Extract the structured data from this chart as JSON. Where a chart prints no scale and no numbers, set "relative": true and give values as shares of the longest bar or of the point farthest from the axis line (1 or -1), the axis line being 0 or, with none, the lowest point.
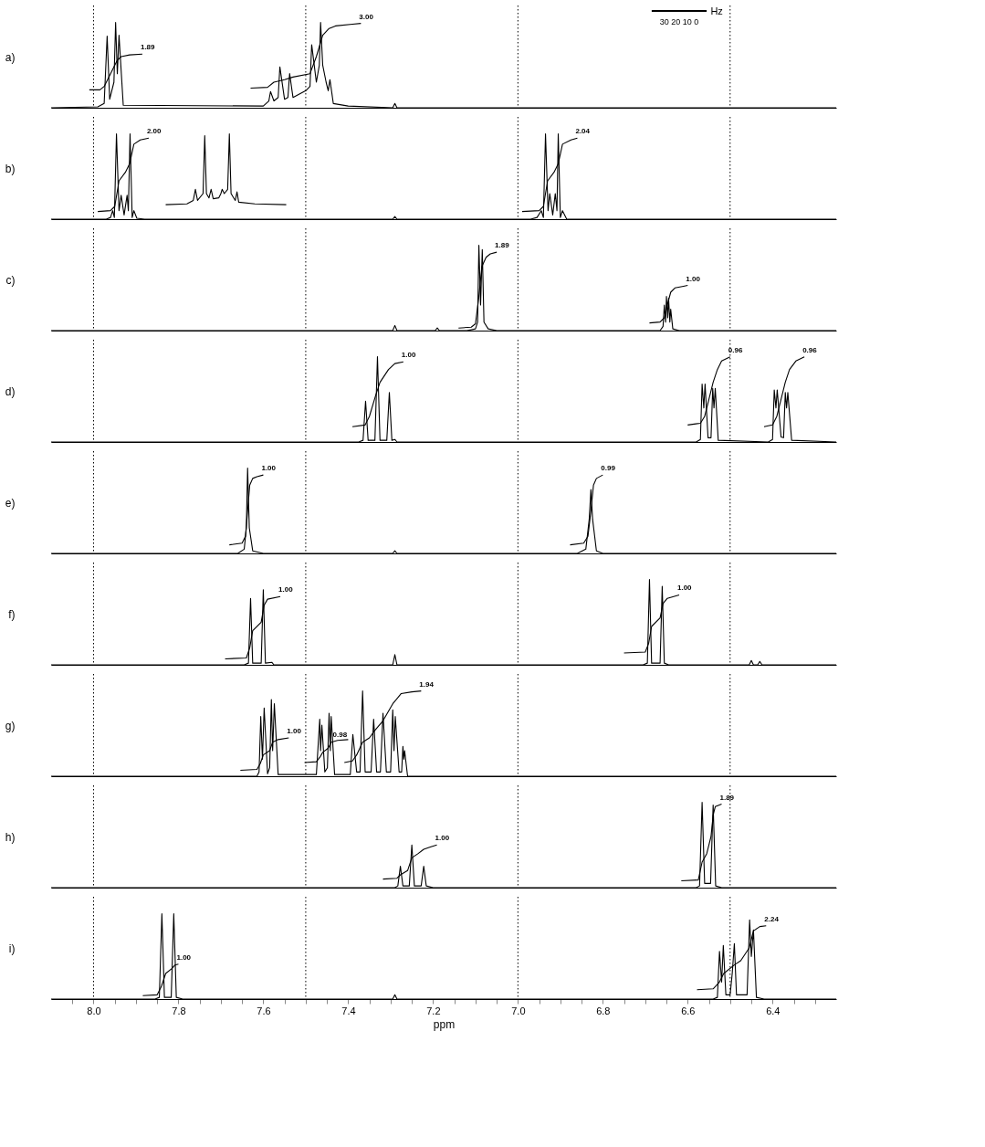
{
  "chart_data": [
    {
      "type": "line",
      "relative": true,
      "ylabel": "a)",
      "xlim": [
        8.1,
        6.25
      ],
      "tick_labels": false,
      "ref_lines": [
        {
          "axis": "x",
          "value": 8.0,
          "color": "#000000",
          "line_style": "dotted"
        },
        {
          "axis": "x",
          "value": 7.5,
          "color": "#000000",
          "line_style": "dotted"
        },
        {
          "axis": "x",
          "value": 7.0,
          "color": "#000000",
          "line_style": "dotted"
        },
        {
          "axis": "x",
          "value": 6.5,
          "color": "#000000",
          "line_style": "dotted"
        }
      ],
      "series": [
        {
          "color": "#000000",
          "x": [
            8.1,
            7.99,
            7.975,
            7.968,
            7.962,
            7.952,
            7.948,
            7.944,
            7.94,
            7.93,
            7.6,
            7.587,
            7.583,
            7.575,
            7.565,
            7.561,
            7.55,
            7.542,
            7.538,
            7.53,
            7.5,
            7.49,
            7.486,
            7.475,
            7.468,
            7.465,
            7.46,
            7.452,
            7.447,
            7.443,
            7.435,
            7.4,
            7.295,
            7.29,
            7.285,
            6.25
          ],
          "values": [
            0,
            0.01,
            0.05,
            0.84,
            0.1,
            0.3,
            1.0,
            0.4,
            0.85,
            0.03,
            0.02,
            0.08,
            0.19,
            0.08,
            0.12,
            0.48,
            0.1,
            0.12,
            0.4,
            0.12,
            0.2,
            0.25,
            0.74,
            0.3,
            0.5,
            1.0,
            0.5,
            0.3,
            0.2,
            0.33,
            0.05,
            0.02,
            0,
            0.05,
            0,
            0
          ]
        },
        {
          "color": "#000000",
          "x": [
            8.01,
            7.985,
            7.975,
            7.96,
            7.945,
            7.935,
            7.915,
            7.885
          ],
          "values": [
            0.21,
            0.21,
            0.25,
            0.4,
            0.55,
            0.6,
            0.62,
            0.63
          ]
        },
        {
          "color": "#000000",
          "x": [
            7.63,
            7.59,
            7.575,
            7.55,
            7.53,
            7.49,
            7.475,
            7.46,
            7.445,
            7.43,
            7.39,
            7.37
          ],
          "values": [
            0.23,
            0.24,
            0.3,
            0.33,
            0.36,
            0.4,
            0.6,
            0.85,
            0.93,
            0.96,
            0.98,
            0.99
          ]
        }
      ],
      "annotations": [
        {
          "text": "1.89",
          "x": 7.885,
          "y": 0.63
        },
        {
          "text": "3.00",
          "x": 7.37,
          "y": 0.99
        },
        "Hz",
        "30 20 10 0"
      ]
    },
    {
      "type": "line",
      "relative": true,
      "ylabel": "b)",
      "xlim": [
        8.1,
        6.25
      ],
      "tick_labels": false,
      "ref_lines": [
        {
          "axis": "x",
          "value": 8.0,
          "color": "#000000",
          "line_style": "dotted"
        },
        {
          "axis": "x",
          "value": 7.5,
          "color": "#000000",
          "line_style": "dotted"
        },
        {
          "axis": "x",
          "value": 7.0,
          "color": "#000000",
          "line_style": "dotted"
        },
        {
          "axis": "x",
          "value": 6.5,
          "color": "#000000",
          "line_style": "dotted"
        }
      ],
      "series": [
        {
          "color": "#000000",
          "x": [
            8.1,
            7.97,
            7.96,
            7.955,
            7.951,
            7.946,
            7.94,
            7.935,
            7.928,
            7.921,
            7.918,
            7.914,
            7.909,
            7.905,
            7.898,
            7.88,
            7.295,
            7.29,
            7.285,
            6.97,
            6.955,
            6.945,
            6.94,
            6.935,
            6.929,
            6.925,
            6.918,
            6.912,
            6.908,
            6.905,
            6.9,
            6.895,
            6.885,
            6.25
          ],
          "values": [
            0,
            0,
            0.02,
            0.1,
            0.02,
            1.0,
            0.1,
            0.28,
            0.05,
            0.28,
            0.1,
            1.0,
            0.02,
            0.1,
            0.01,
            0,
            0,
            0.03,
            0,
            0,
            0.02,
            0.1,
            0.02,
            1.0,
            0.1,
            0.3,
            0.05,
            0.3,
            0.1,
            1.0,
            0.02,
            0.1,
            0,
            0
          ]
        },
        {
          "color": "#000000",
          "x": [
            7.83,
            7.78,
            7.765,
            7.76,
            7.755,
            7.742,
            7.738,
            7.734,
            7.728,
            7.723,
            7.718,
            7.705,
            7.7,
            7.697,
            7.692,
            7.684,
            7.68,
            7.676,
            7.666,
            7.662,
            7.658,
            7.62,
            7.546
          ],
          "values": [
            0.17,
            0.18,
            0.22,
            0.35,
            0.22,
            0.3,
            0.98,
            0.3,
            0.25,
            0.35,
            0.24,
            0.25,
            0.3,
            0.35,
            0.3,
            0.35,
            1.0,
            0.3,
            0.22,
            0.32,
            0.2,
            0.18,
            0.17
          ]
        },
        {
          "color": "#000000",
          "x": [
            7.99,
            7.96,
            7.95,
            7.94,
            7.925,
            7.915,
            7.905,
            7.89,
            7.87
          ],
          "values": [
            0.09,
            0.1,
            0.15,
            0.45,
            0.55,
            0.65,
            0.88,
            0.93,
            0.95
          ]
        },
        {
          "color": "#000000",
          "x": [
            6.99,
            6.95,
            6.94,
            6.93,
            6.915,
            6.905,
            6.895,
            6.875,
            6.86
          ],
          "values": [
            0.09,
            0.1,
            0.15,
            0.45,
            0.55,
            0.65,
            0.88,
            0.93,
            0.95
          ]
        }
      ],
      "annotations": [
        {
          "text": "2.00",
          "x": 7.87,
          "y": 0.95
        },
        {
          "text": "2.04",
          "x": 6.86,
          "y": 0.95
        }
      ]
    },
    {
      "type": "line",
      "relative": true,
      "ylabel": "c)",
      "xlim": [
        8.1,
        6.25
      ],
      "tick_labels": false,
      "ref_lines": [
        {
          "axis": "x",
          "value": 8.0,
          "color": "#000000",
          "line_style": "dotted"
        },
        {
          "axis": "x",
          "value": 7.5,
          "color": "#000000",
          "line_style": "dotted"
        },
        {
          "axis": "x",
          "value": 7.0,
          "color": "#000000",
          "line_style": "dotted"
        },
        {
          "axis": "x",
          "value": 6.5,
          "color": "#000000",
          "line_style": "dotted"
        }
      ],
      "series": [
        {
          "color": "#000000",
          "x": [
            8.1,
            7.295,
            7.29,
            7.285,
            7.195,
            7.19,
            7.185,
            7.12,
            7.1,
            7.095,
            7.092,
            7.088,
            7.084,
            7.08,
            7.07,
            7.05,
            6.665,
            6.658,
            6.655,
            6.652,
            6.65,
            6.647,
            6.645,
            6.642,
            6.64,
            6.635,
            6.62,
            6.25
          ],
          "values": [
            0,
            0,
            0.06,
            0,
            0,
            0.03,
            0,
            0,
            0.02,
            0.1,
            1.0,
            0.3,
            0.95,
            0.1,
            0.02,
            0,
            0,
            0.05,
            0.3,
            0.1,
            0.4,
            0.15,
            0.38,
            0.1,
            0.25,
            0.02,
            0,
            0
          ]
        },
        {
          "color": "#000000",
          "x": [
            7.14,
            7.11,
            7.1,
            7.092,
            7.085,
            7.075,
            7.065,
            7.05
          ],
          "values": [
            0.03,
            0.04,
            0.08,
            0.4,
            0.75,
            0.86,
            0.9,
            0.92
          ]
        },
        {
          "color": "#000000",
          "x": [
            6.69,
            6.665,
            6.655,
            6.648,
            6.64,
            6.63,
            6.61,
            6.6
          ],
          "values": [
            0.09,
            0.1,
            0.15,
            0.3,
            0.45,
            0.5,
            0.52,
            0.53
          ]
        }
      ],
      "annotations": [
        {
          "text": "1.89",
          "x": 7.05,
          "y": 0.92
        },
        {
          "text": "1.00",
          "x": 6.6,
          "y": 0.53
        }
      ]
    },
    {
      "type": "line",
      "relative": true,
      "ylabel": "d)",
      "xlim": [
        8.1,
        6.25
      ],
      "tick_labels": false,
      "ref_lines": [
        {
          "axis": "x",
          "value": 8.0,
          "color": "#000000",
          "line_style": "dotted"
        },
        {
          "axis": "x",
          "value": 7.5,
          "color": "#000000",
          "line_style": "dotted"
        },
        {
          "axis": "x",
          "value": 7.0,
          "color": "#000000",
          "line_style": "dotted"
        },
        {
          "axis": "x",
          "value": 6.5,
          "color": "#000000",
          "line_style": "dotted"
        }
      ],
      "series": [
        {
          "color": "#000000",
          "x": [
            8.1,
            7.375,
            7.365,
            7.359,
            7.353,
            7.337,
            7.331,
            7.325,
            7.309,
            7.303,
            7.297,
            7.29,
            7.285,
            6.58,
            6.57,
            6.566,
            6.562,
            6.559,
            6.552,
            6.545,
            6.541,
            6.538,
            6.535,
            6.528,
            6.41,
            6.4,
            6.396,
            6.392,
            6.389,
            6.38,
            6.374,
            6.37,
            6.367,
            6.364,
            6.355,
            6.25
          ],
          "values": [
            0,
            0,
            0.02,
            0.48,
            0.02,
            0.02,
            1.0,
            0.02,
            0.02,
            0.58,
            0.02,
            0.03,
            0,
            0,
            0.03,
            0.68,
            0.4,
            0.68,
            0.05,
            0.05,
            0.63,
            0.4,
            0.63,
            0.02,
            0,
            0.03,
            0.61,
            0.4,
            0.61,
            0.06,
            0.05,
            0.58,
            0.4,
            0.58,
            0.02,
            0
          ]
        },
        {
          "color": "#000000",
          "x": [
            7.39,
            7.36,
            7.35,
            7.335,
            7.325,
            7.305,
            7.29,
            7.27
          ],
          "values": [
            0.18,
            0.2,
            0.3,
            0.55,
            0.7,
            0.85,
            0.92,
            0.94
          ]
        },
        {
          "color": "#000000",
          "x": [
            6.6,
            6.57,
            6.56,
            6.55,
            6.54,
            6.53,
            6.52,
            6.5
          ],
          "values": [
            0.2,
            0.22,
            0.3,
            0.5,
            0.7,
            0.85,
            0.95,
            1.0
          ]
        },
        {
          "color": "#000000",
          "x": [
            6.42,
            6.4,
            6.39,
            6.38,
            6.37,
            6.36,
            6.345,
            6.325
          ],
          "values": [
            0.18,
            0.2,
            0.3,
            0.5,
            0.7,
            0.85,
            0.95,
            1.0
          ]
        }
      ],
      "annotations": [
        {
          "text": "1.00",
          "x": 7.27,
          "y": 0.94
        },
        {
          "text": "0.96",
          "x": 6.5,
          "y": 1.0
        },
        {
          "text": "0.96",
          "x": 6.325,
          "y": 1.0
        }
      ]
    },
    {
      "type": "line",
      "relative": true,
      "ylabel": "e)",
      "xlim": [
        8.1,
        6.25
      ],
      "tick_labels": false,
      "ref_lines": [
        {
          "axis": "x",
          "value": 8.0,
          "color": "#000000",
          "line_style": "dotted"
        },
        {
          "axis": "x",
          "value": 7.5,
          "color": "#000000",
          "line_style": "dotted"
        },
        {
          "axis": "x",
          "value": 7.0,
          "color": "#000000",
          "line_style": "dotted"
        },
        {
          "axis": "x",
          "value": 6.5,
          "color": "#000000",
          "line_style": "dotted"
        }
      ],
      "series": [
        {
          "color": "#000000",
          "x": [
            8.1,
            7.66,
            7.645,
            7.64,
            7.637,
            7.633,
            7.625,
            7.6,
            7.295,
            7.29,
            7.285,
            6.86,
            6.84,
            6.832,
            6.828,
            6.824,
            6.815,
            6.8,
            6.25
          ],
          "values": [
            0,
            0,
            0.05,
            0.3,
            1.0,
            0.3,
            0.03,
            0,
            0,
            0.03,
            0,
            0,
            0.05,
            0.4,
            0.75,
            0.4,
            0.03,
            0,
            0
          ]
        },
        {
          "color": "#000000",
          "x": [
            7.68,
            7.65,
            7.642,
            7.637,
            7.632,
            7.625,
            7.615,
            7.6
          ],
          "values": [
            0.1,
            0.12,
            0.2,
            0.5,
            0.8,
            0.88,
            0.9,
            0.92
          ]
        },
        {
          "color": "#000000",
          "x": [
            6.877,
            6.845,
            6.835,
            6.828,
            6.822,
            6.815,
            6.8
          ],
          "values": [
            0.1,
            0.12,
            0.2,
            0.5,
            0.8,
            0.88,
            0.92
          ]
        }
      ],
      "annotations": [
        {
          "text": "1.00",
          "x": 7.6,
          "y": 0.92
        },
        {
          "text": "0.99",
          "x": 6.8,
          "y": 0.92
        }
      ]
    },
    {
      "type": "line",
      "relative": true,
      "ylabel": "f)",
      "xlim": [
        8.1,
        6.25
      ],
      "tick_labels": false,
      "ref_lines": [
        {
          "axis": "x",
          "value": 8.0,
          "color": "#000000",
          "line_style": "dotted"
        },
        {
          "axis": "x",
          "value": 7.5,
          "color": "#000000",
          "line_style": "dotted"
        },
        {
          "axis": "x",
          "value": 7.0,
          "color": "#000000",
          "line_style": "dotted"
        },
        {
          "axis": "x",
          "value": 6.5,
          "color": "#000000",
          "line_style": "dotted"
        }
      ],
      "series": [
        {
          "color": "#000000",
          "x": [
            8.1,
            7.645,
            7.635,
            7.63,
            7.625,
            7.605,
            7.6,
            7.595,
            7.58,
            7.575,
            7.295,
            7.29,
            7.285,
            6.705,
            6.695,
            6.69,
            6.685,
            6.665,
            6.66,
            6.655,
            6.645,
            6.455,
            6.45,
            6.445,
            6.435,
            6.43,
            6.425,
            6.25
          ],
          "values": [
            0,
            0,
            0.02,
            0.78,
            0.02,
            0.02,
            0.88,
            0.02,
            0.03,
            0,
            0,
            0.12,
            0,
            0,
            0.02,
            1.0,
            0.02,
            0.02,
            0.92,
            0.02,
            0,
            0,
            0.05,
            0,
            0,
            0.04,
            0,
            0
          ]
        },
        {
          "color": "#000000",
          "x": [
            7.69,
            7.64,
            7.632,
            7.625,
            7.605,
            7.598,
            7.59,
            7.56
          ],
          "values": [
            0.07,
            0.08,
            0.2,
            0.4,
            0.5,
            0.7,
            0.77,
            0.8
          ]
        },
        {
          "color": "#000000",
          "x": [
            6.75,
            6.7,
            6.692,
            6.685,
            6.665,
            6.658,
            6.648,
            6.62
          ],
          "values": [
            0.14,
            0.15,
            0.25,
            0.45,
            0.55,
            0.72,
            0.78,
            0.82
          ]
        }
      ],
      "annotations": [
        {
          "text": "1.00",
          "x": 7.56,
          "y": 0.8
        },
        {
          "text": "1.00",
          "x": 6.62,
          "y": 0.82
        }
      ]
    },
    {
      "type": "line",
      "relative": true,
      "ylabel": "g)",
      "xlim": [
        8.1,
        6.25
      ],
      "tick_labels": false,
      "ref_lines": [
        {
          "axis": "x",
          "value": 8.0,
          "color": "#000000",
          "line_style": "dotted"
        },
        {
          "axis": "x",
          "value": 7.5,
          "color": "#000000",
          "line_style": "dotted"
        },
        {
          "axis": "x",
          "value": 7.0,
          "color": "#000000",
          "line_style": "dotted"
        },
        {
          "axis": "x",
          "value": 6.5,
          "color": "#000000",
          "line_style": "dotted"
        }
      ],
      "series": [
        {
          "color": "#000000",
          "x": [
            8.1,
            7.615,
            7.61,
            7.606,
            7.602,
            7.598,
            7.59,
            7.585,
            7.581,
            7.578,
            7.574,
            7.565,
            7.475,
            7.467,
            7.465,
            7.462,
            7.455,
            7.449,
            7.445,
            7.442,
            7.44,
            7.432,
            7.395,
            7.389,
            7.38,
            7.372,
            7.366,
            7.36,
            7.346,
            7.34,
            7.333,
            7.324,
            7.318,
            7.31,
            7.3,
            7.295,
            7.292,
            7.289,
            7.28,
            7.274,
            7.271,
            7.269,
            7.267,
            7.26,
            6.25
          ],
          "values": [
            0,
            0,
            0.05,
            0.7,
            0.2,
            0.8,
            0.03,
            0.1,
            0.9,
            0.3,
            0.85,
            0.02,
            0.02,
            0.67,
            0.3,
            0.6,
            0.05,
            0.1,
            0.74,
            0.3,
            0.7,
            0.02,
            0.02,
            0.49,
            0.05,
            0.05,
            1.0,
            0.05,
            0.05,
            0.67,
            0.05,
            0.05,
            0.74,
            0.05,
            0.05,
            0.78,
            0.3,
            0.7,
            0.05,
            0.05,
            0.35,
            0.2,
            0.3,
            0,
            0
          ]
        },
        {
          "color": "#000000",
          "x": [
            7.654,
            7.615,
            7.607,
            7.6,
            7.585,
            7.578,
            7.565,
            7.54
          ],
          "values": [
            0.07,
            0.08,
            0.15,
            0.25,
            0.3,
            0.4,
            0.43,
            0.45
          ]
        },
        {
          "color": "#000000",
          "x": [
            7.503,
            7.475,
            7.467,
            7.46,
            7.447,
            7.44,
            7.425,
            7.4
          ],
          "values": [
            0.16,
            0.17,
            0.22,
            0.28,
            0.33,
            0.4,
            0.42,
            0.43
          ]
        },
        {
          "color": "#000000",
          "x": [
            7.409,
            7.39,
            7.38,
            7.366,
            7.35,
            7.34,
            7.318,
            7.295,
            7.275,
            7.25,
            7.228
          ],
          "values": [
            0.16,
            0.18,
            0.25,
            0.4,
            0.45,
            0.52,
            0.65,
            0.85,
            0.97,
            0.99,
            1.0
          ]
        }
      ],
      "annotations": [
        {
          "text": "1.00",
          "x": 7.54,
          "y": 0.45
        },
        {
          "text": "0.98",
          "x": 7.432,
          "y": 0.41
        },
        {
          "text": "1.94",
          "x": 7.228,
          "y": 1.0
        }
      ]
    },
    {
      "type": "line",
      "relative": true,
      "ylabel": "h)",
      "xlim": [
        8.1,
        6.25
      ],
      "tick_labels": false,
      "ref_lines": [
        {
          "axis": "x",
          "value": 8.0,
          "color": "#000000",
          "line_style": "dotted"
        },
        {
          "axis": "x",
          "value": 7.5,
          "color": "#000000",
          "line_style": "dotted"
        },
        {
          "axis": "x",
          "value": 7.0,
          "color": "#000000",
          "line_style": "dotted"
        },
        {
          "axis": "x",
          "value": 6.5,
          "color": "#000000",
          "line_style": "dotted"
        }
      ],
      "series": [
        {
          "color": "#000000",
          "x": [
            8.1,
            7.29,
            7.283,
            7.277,
            7.271,
            7.256,
            7.25,
            7.244,
            7.228,
            7.222,
            7.216,
            7.2,
            6.58,
            6.572,
            6.566,
            6.56,
            6.546,
            6.54,
            6.534,
            6.52,
            6.25
          ],
          "values": [
            0,
            0,
            0.02,
            0.25,
            0.02,
            0.02,
            0.5,
            0.02,
            0.02,
            0.25,
            0.02,
            0,
            0,
            0.02,
            1.0,
            0.05,
            0.05,
            0.97,
            0.02,
            0,
            0
          ]
        },
        {
          "color": "#000000",
          "x": [
            7.318,
            7.285,
            7.277,
            7.26,
            7.25,
            7.235,
            7.222,
            7.205,
            7.191
          ],
          "values": [
            0.1,
            0.11,
            0.15,
            0.2,
            0.35,
            0.4,
            0.45,
            0.48,
            0.5
          ]
        },
        {
          "color": "#000000",
          "x": [
            6.615,
            6.575,
            6.566,
            6.555,
            6.545,
            6.54,
            6.535,
            6.52
          ],
          "values": [
            0.08,
            0.09,
            0.3,
            0.4,
            0.6,
            0.85,
            0.95,
            0.98
          ]
        }
      ],
      "annotations": [
        {
          "text": "1.00",
          "x": 7.191,
          "y": 0.5
        },
        {
          "text": "1.89",
          "x": 6.52,
          "y": 0.98
        }
      ]
    },
    {
      "type": "line",
      "relative": true,
      "ylabel": "i)",
      "xlabel": "ppm",
      "xlim": [
        8.1,
        6.25
      ],
      "tick_labels": "x",
      "xticks": [
        {
          "value": 8.05,
          "label": null
        },
        {
          "value": 8.0,
          "label": "8.0"
        },
        {
          "value": 7.95,
          "label": null
        },
        {
          "value": 7.9,
          "label": null
        },
        {
          "value": 7.85,
          "label": null
        },
        {
          "value": 7.8,
          "label": "7.8"
        },
        {
          "value": 7.75,
          "label": null
        },
        {
          "value": 7.7,
          "label": null
        },
        {
          "value": 7.65,
          "label": null
        },
        {
          "value": 7.6,
          "label": "7.6"
        },
        {
          "value": 7.55,
          "label": null
        },
        {
          "value": 7.5,
          "label": null
        },
        {
          "value": 7.45,
          "label": null
        },
        {
          "value": 7.4,
          "label": "7.4"
        },
        {
          "value": 7.35,
          "label": null
        },
        {
          "value": 7.3,
          "label": null
        },
        {
          "value": 7.25,
          "label": null
        },
        {
          "value": 7.2,
          "label": "7.2"
        },
        {
          "value": 7.15,
          "label": null
        },
        {
          "value": 7.1,
          "label": null
        },
        {
          "value": 7.05,
          "label": null
        },
        {
          "value": 7.0,
          "label": "7.0"
        },
        {
          "value": 6.95,
          "label": null
        },
        {
          "value": 6.9,
          "label": null
        },
        {
          "value": 6.85,
          "label": null
        },
        {
          "value": 6.8,
          "label": "6.8"
        },
        {
          "value": 6.75,
          "label": null
        },
        {
          "value": 6.7,
          "label": null
        },
        {
          "value": 6.65,
          "label": null
        },
        {
          "value": 6.6,
          "label": "6.6"
        },
        {
          "value": 6.55,
          "label": null
        },
        {
          "value": 6.5,
          "label": null
        },
        {
          "value": 6.45,
          "label": null
        },
        {
          "value": 6.4,
          "label": "6.4"
        },
        {
          "value": 6.35,
          "label": null
        },
        {
          "value": 6.3,
          "label": null
        }
      ],
      "ref_lines": [
        {
          "axis": "x",
          "value": 8.0,
          "color": "#000000",
          "line_style": "dotted"
        },
        {
          "axis": "x",
          "value": 7.5,
          "color": "#000000",
          "line_style": "dotted"
        },
        {
          "axis": "x",
          "value": 7.0,
          "color": "#000000",
          "line_style": "dotted"
        },
        {
          "axis": "x",
          "value": 6.5,
          "color": "#000000",
          "line_style": "dotted"
        }
      ],
      "series": [
        {
          "color": "#000000",
          "x": [
            8.1,
            7.855,
            7.845,
            7.839,
            7.833,
            7.817,
            7.811,
            7.805,
            7.79,
            7.295,
            7.29,
            7.285,
            6.54,
            6.53,
            6.525,
            6.52,
            6.516,
            6.51,
            6.5,
            6.495,
            6.49,
            6.485,
            6.46,
            6.454,
            6.45,
            6.445,
            6.438,
            6.42,
            6.25
          ],
          "values": [
            0,
            0,
            0.02,
            1.0,
            0.02,
            0.02,
            1.0,
            0.02,
            0,
            0,
            0.05,
            0,
            0,
            0.02,
            0.56,
            0.2,
            0.63,
            0.05,
            0.05,
            0.3,
            0.65,
            0.05,
            0.05,
            0.93,
            0.5,
            0.81,
            0.02,
            0,
            0
          ]
        },
        {
          "color": "#000000",
          "x": [
            7.884,
            7.85,
            7.84,
            7.83,
            7.815,
            7.808,
            7.8
          ],
          "values": [
            0.04,
            0.05,
            0.15,
            0.3,
            0.36,
            0.4,
            0.41
          ]
        },
        {
          "color": "#000000",
          "x": [
            6.578,
            6.54,
            6.525,
            6.515,
            6.49,
            6.475,
            6.455,
            6.445,
            6.43,
            6.415
          ],
          "values": [
            0.11,
            0.12,
            0.2,
            0.3,
            0.4,
            0.45,
            0.6,
            0.8,
            0.85,
            0.86
          ]
        }
      ],
      "annotations": [
        {
          "text": "1.00",
          "x": 7.8,
          "y": 0.41
        },
        {
          "text": "2.24",
          "x": 6.415,
          "y": 0.86
        }
      ]
    }
  ]
}
